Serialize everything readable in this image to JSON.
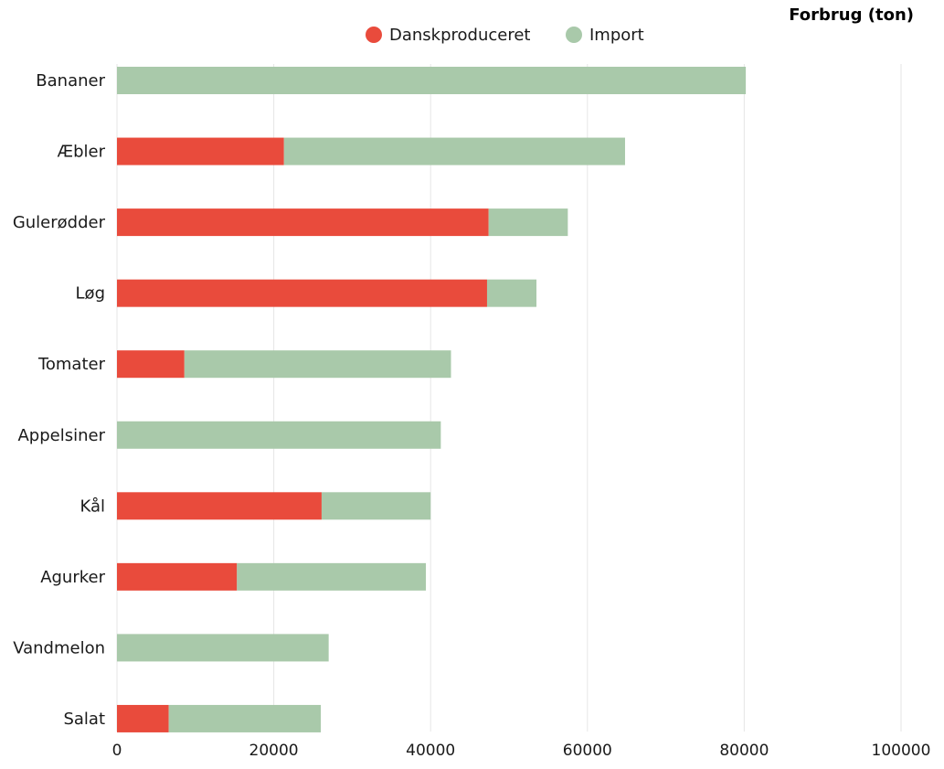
{
  "chart_data": {
    "type": "bar",
    "orientation": "horizontal",
    "stacked": true,
    "title": "",
    "unit_label": "Forbrug (ton)",
    "xlabel": "",
    "ylabel": "",
    "xlim": [
      0,
      100000
    ],
    "x_ticks": [
      "0",
      "20000",
      "40000",
      "60000",
      "80000",
      "100000"
    ],
    "x_tick_values": [
      0,
      20000,
      40000,
      60000,
      80000,
      100000
    ],
    "grid": true,
    "legend_position": "top-center",
    "categories": [
      "Bananer",
      "Æbler",
      "Gulerødder",
      "Løg",
      "Tomater",
      "Appelsiner",
      "Kål",
      "Agurker",
      "Vandmelon",
      "Salat"
    ],
    "series": [
      {
        "name": "Danskproduceret",
        "color": "#e94b3c",
        "values": [
          0,
          21300,
          47400,
          47200,
          8600,
          0,
          26100,
          15300,
          0,
          6600
        ]
      },
      {
        "name": "Import",
        "color": "#a9c9aa",
        "values": [
          80200,
          43500,
          10100,
          6300,
          34000,
          41300,
          13900,
          24100,
          27000,
          19400
        ]
      }
    ]
  }
}
